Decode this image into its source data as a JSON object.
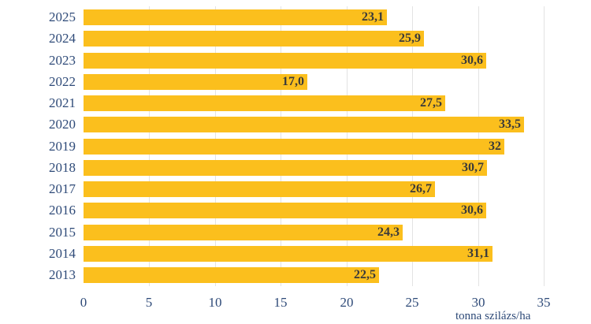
{
  "chart_data": {
    "type": "bar",
    "orientation": "horizontal",
    "title": "",
    "xlabel": "tonna szilázs/ha",
    "ylabel": "",
    "xlim": [
      0,
      35
    ],
    "x_ticks": [
      "0",
      "5",
      "10",
      "15",
      "20",
      "25",
      "30",
      "35"
    ],
    "grid": true,
    "legend": null,
    "bar_color": "#fbbf1d",
    "categories": [
      "2025",
      "2024",
      "2023",
      "2022",
      "2021",
      "2020",
      "2019",
      "2018",
      "2017",
      "2016",
      "2015",
      "2014",
      "2013"
    ],
    "values": [
      23.1,
      25.9,
      30.6,
      17.0,
      27.5,
      33.5,
      32,
      30.7,
      26.7,
      30.6,
      24.3,
      31.1,
      22.5
    ],
    "value_labels": [
      "23,1",
      "25,9",
      "30,6",
      "17,0",
      "27,5",
      "33,5",
      "32",
      "30,7",
      "26,7",
      "30,6",
      "24,3",
      "31,1",
      "22,5"
    ]
  }
}
